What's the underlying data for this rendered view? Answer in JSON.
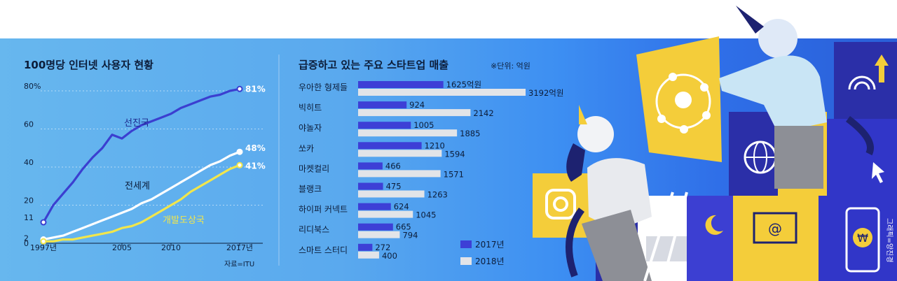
{
  "left_chart_title": "100명당 인터넷 사용자 현황",
  "right_chart_title": "급증하고 있는 주요 스타트업 매출",
  "right_chart_unit": "※단위: 억원",
  "source": "자료=ITU",
  "illustration_credit": "그래픽=양진경",
  "colors": {
    "developed": "#3b3fd0",
    "world": "#ffffff",
    "developing": "#f2e64b",
    "bar_2017": "#3d3fd6",
    "bar_2018": "#e2e4e8",
    "text_dark": "#0c1d3a"
  },
  "chart_data": [
    {
      "type": "line",
      "title": "100명당 인터넷 사용자 현황",
      "xlabel": "",
      "ylabel": "",
      "x_ticks": [
        "1997년",
        "2005",
        "2010",
        "2017년"
      ],
      "y_ticks": [
        "80%",
        "60",
        "40",
        "20",
        "11",
        "2",
        "0"
      ],
      "xlim": [
        1997,
        2017
      ],
      "ylim": [
        0,
        80
      ],
      "grid": true,
      "series": [
        {
          "name": "선진국",
          "end_label": "81%",
          "points": [
            [
              1997,
              11
            ],
            [
              1998,
              20
            ],
            [
              1999,
              26
            ],
            [
              2000,
              32
            ],
            [
              2001,
              39
            ],
            [
              2002,
              45
            ],
            [
              2003,
              50
            ],
            [
              2004,
              57
            ],
            [
              2005,
              55
            ],
            [
              2006,
              59
            ],
            [
              2007,
              62
            ],
            [
              2008,
              64
            ],
            [
              2009,
              66
            ],
            [
              2010,
              68
            ],
            [
              2011,
              71
            ],
            [
              2012,
              73
            ],
            [
              2013,
              75
            ],
            [
              2014,
              77
            ],
            [
              2015,
              78
            ],
            [
              2016,
              80
            ],
            [
              2017,
              81
            ]
          ]
        },
        {
          "name": "전세계",
          "end_label": "48%",
          "points": [
            [
              1997,
              2
            ],
            [
              1998,
              3
            ],
            [
              1999,
              4
            ],
            [
              2000,
              6
            ],
            [
              2001,
              8
            ],
            [
              2002,
              10
            ],
            [
              2003,
              12
            ],
            [
              2004,
              14
            ],
            [
              2005,
              16
            ],
            [
              2006,
              18
            ],
            [
              2007,
              21
            ],
            [
              2008,
              23
            ],
            [
              2009,
              26
            ],
            [
              2010,
              29
            ],
            [
              2011,
              32
            ],
            [
              2012,
              35
            ],
            [
              2013,
              38
            ],
            [
              2014,
              41
            ],
            [
              2015,
              43
            ],
            [
              2016,
              46
            ],
            [
              2017,
              48
            ]
          ]
        },
        {
          "name": "개발도상국",
          "end_label": "41%",
          "points": [
            [
              1997,
              1
            ],
            [
              1998,
              1
            ],
            [
              1999,
              2
            ],
            [
              2000,
              2
            ],
            [
              2001,
              3
            ],
            [
              2002,
              4
            ],
            [
              2003,
              5
            ],
            [
              2004,
              6
            ],
            [
              2005,
              8
            ],
            [
              2006,
              9
            ],
            [
              2007,
              11
            ],
            [
              2008,
              14
            ],
            [
              2009,
              17
            ],
            [
              2010,
              20
            ],
            [
              2011,
              23
            ],
            [
              2012,
              27
            ],
            [
              2013,
              30
            ],
            [
              2014,
              33
            ],
            [
              2015,
              36
            ],
            [
              2016,
              39
            ],
            [
              2017,
              41
            ]
          ]
        }
      ]
    },
    {
      "type": "bar",
      "title": "급증하고 있는 주요 스타트업 매출",
      "unit": "※단위: 억원",
      "categories": [
        "우아한 형제들",
        "빅히트",
        "야놀자",
        "쏘카",
        "마켓컬리",
        "블랭크",
        "하이퍼 커넥트",
        "리디북스",
        "스마트 스터디"
      ],
      "series": [
        {
          "name": "2017년",
          "values": [
            1625,
            924,
            1005,
            1210,
            466,
            475,
            624,
            665,
            272
          ]
        },
        {
          "name": "2018년",
          "values": [
            3192,
            2142,
            1885,
            1594,
            1571,
            1263,
            1045,
            794,
            400
          ]
        }
      ],
      "value_labels_2017": [
        "1625억원",
        "924",
        "1005",
        "1210",
        "466",
        "475",
        "624",
        "665",
        "272"
      ],
      "value_labels_2018": [
        "3192억원",
        "2142",
        "1885",
        "1594",
        "1571",
        "1263",
        "1045",
        "794",
        "400"
      ],
      "xlim": [
        0,
        3192
      ],
      "legend": "bottom-right"
    }
  ]
}
